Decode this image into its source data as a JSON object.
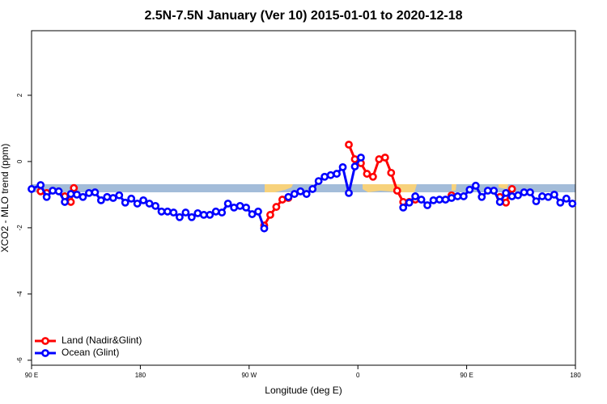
{
  "chart_data": {
    "type": "line",
    "title": "2.5N-7.5N January (Ver 10)   2015-01-01 to 2020-12-18",
    "x_label": "Longitude (deg E)",
    "y_label": "XCO2 - MLO trend (ppm)",
    "xlim": [
      90,
      540
    ],
    "ylim": [
      -6.15,
      3.95
    ],
    "xticks": [
      {
        "value": 90,
        "label": "90 E"
      },
      {
        "value": 180,
        "label": "180"
      },
      {
        "value": 270,
        "label": "90 W"
      },
      {
        "value": 360,
        "label": "0"
      },
      {
        "value": 450,
        "label": "90 E"
      },
      {
        "value": 540,
        "label": "180"
      }
    ],
    "yticks": [
      -6,
      -4,
      -2,
      0,
      2
    ],
    "legend": "bottom-left",
    "series": [
      {
        "name": "Land (Nadir&Glint)",
        "color": "#ff0000",
        "x": [
          97.5,
          102.5,
          110,
          117.5,
          122.5,
          125,
          200,
          282.5,
          287.5,
          292.5,
          297.5,
          302.5,
          330,
          352.5,
          357.5,
          362.5,
          367.5,
          372.5,
          377.5,
          382.5,
          387.5,
          392.5,
          397.5,
          402.5,
          407.5,
          420,
          437.5,
          460,
          477.5,
          482.5,
          487.5
        ],
        "values": [
          -0.9,
          -0.95,
          null,
          -1.05,
          -1.22,
          -0.8,
          null,
          -1.93,
          -1.61,
          -1.37,
          -1.15,
          -1.1,
          null,
          0.51,
          0.07,
          -0.05,
          -0.37,
          -0.46,
          0.07,
          0.12,
          -0.34,
          -0.88,
          -1.22,
          -1.22,
          -1.15,
          null,
          -1.02,
          null,
          -1.07,
          -1.24,
          -0.83
        ]
      },
      {
        "name": "Ocean (Glint)",
        "color": "#0000ff",
        "x": [
          90,
          97.5,
          102.5,
          107.5,
          112.5,
          117.5,
          122.5,
          127.5,
          132.5,
          137.5,
          142.5,
          147.5,
          152.5,
          157.5,
          162.5,
          167.5,
          172.5,
          177.5,
          182.5,
          187.5,
          192.5,
          197.5,
          202.5,
          207.5,
          212.5,
          217.5,
          222.5,
          227.5,
          232.5,
          237.5,
          242.5,
          247.5,
          252.5,
          257.5,
          262.5,
          267.5,
          272.5,
          277.5,
          282.5,
          292.5,
          302.5,
          307.5,
          312.5,
          317.5,
          322.5,
          327.5,
          332.5,
          337.5,
          342.5,
          347.5,
          352.5,
          357.5,
          362.5,
          380,
          397.5,
          402.5,
          407.5,
          412.5,
          417.5,
          422.5,
          427.5,
          432.5,
          437.5,
          442.5,
          447.5,
          452.5,
          457.5,
          462.5,
          467.5,
          472.5,
          477.5,
          482.5,
          487.5,
          492.5,
          497.5,
          502.5,
          507.5,
          512.5,
          517.5,
          522.5,
          527.5,
          532.5,
          537.5
        ],
        "values": [
          -0.83,
          -0.71,
          -1.07,
          -0.88,
          -0.9,
          -1.22,
          -0.98,
          -1.0,
          -1.07,
          -0.95,
          -0.93,
          -1.17,
          -1.07,
          -1.1,
          -1.02,
          -1.24,
          -1.12,
          -1.27,
          -1.17,
          -1.27,
          -1.34,
          -1.51,
          -1.51,
          -1.54,
          -1.68,
          -1.54,
          -1.68,
          -1.56,
          -1.61,
          -1.61,
          -1.51,
          -1.54,
          -1.27,
          -1.39,
          -1.34,
          -1.39,
          -1.59,
          -1.51,
          -2.02,
          null,
          -1.07,
          -0.98,
          -0.9,
          -0.98,
          -0.83,
          -0.59,
          -0.46,
          -0.41,
          -0.37,
          -0.17,
          -0.95,
          -0.15,
          0.12,
          null,
          -1.39,
          -1.24,
          -1.05,
          -1.15,
          -1.32,
          -1.17,
          -1.15,
          -1.15,
          -1.1,
          -1.05,
          -1.05,
          -0.85,
          -0.73,
          -1.07,
          -0.88,
          -0.88,
          -1.22,
          -0.95,
          -1.05,
          -1.02,
          -0.93,
          -0.93,
          -1.2,
          -1.05,
          -1.07,
          -1.0,
          -1.24,
          -1.12,
          -1.27
        ]
      }
    ]
  }
}
